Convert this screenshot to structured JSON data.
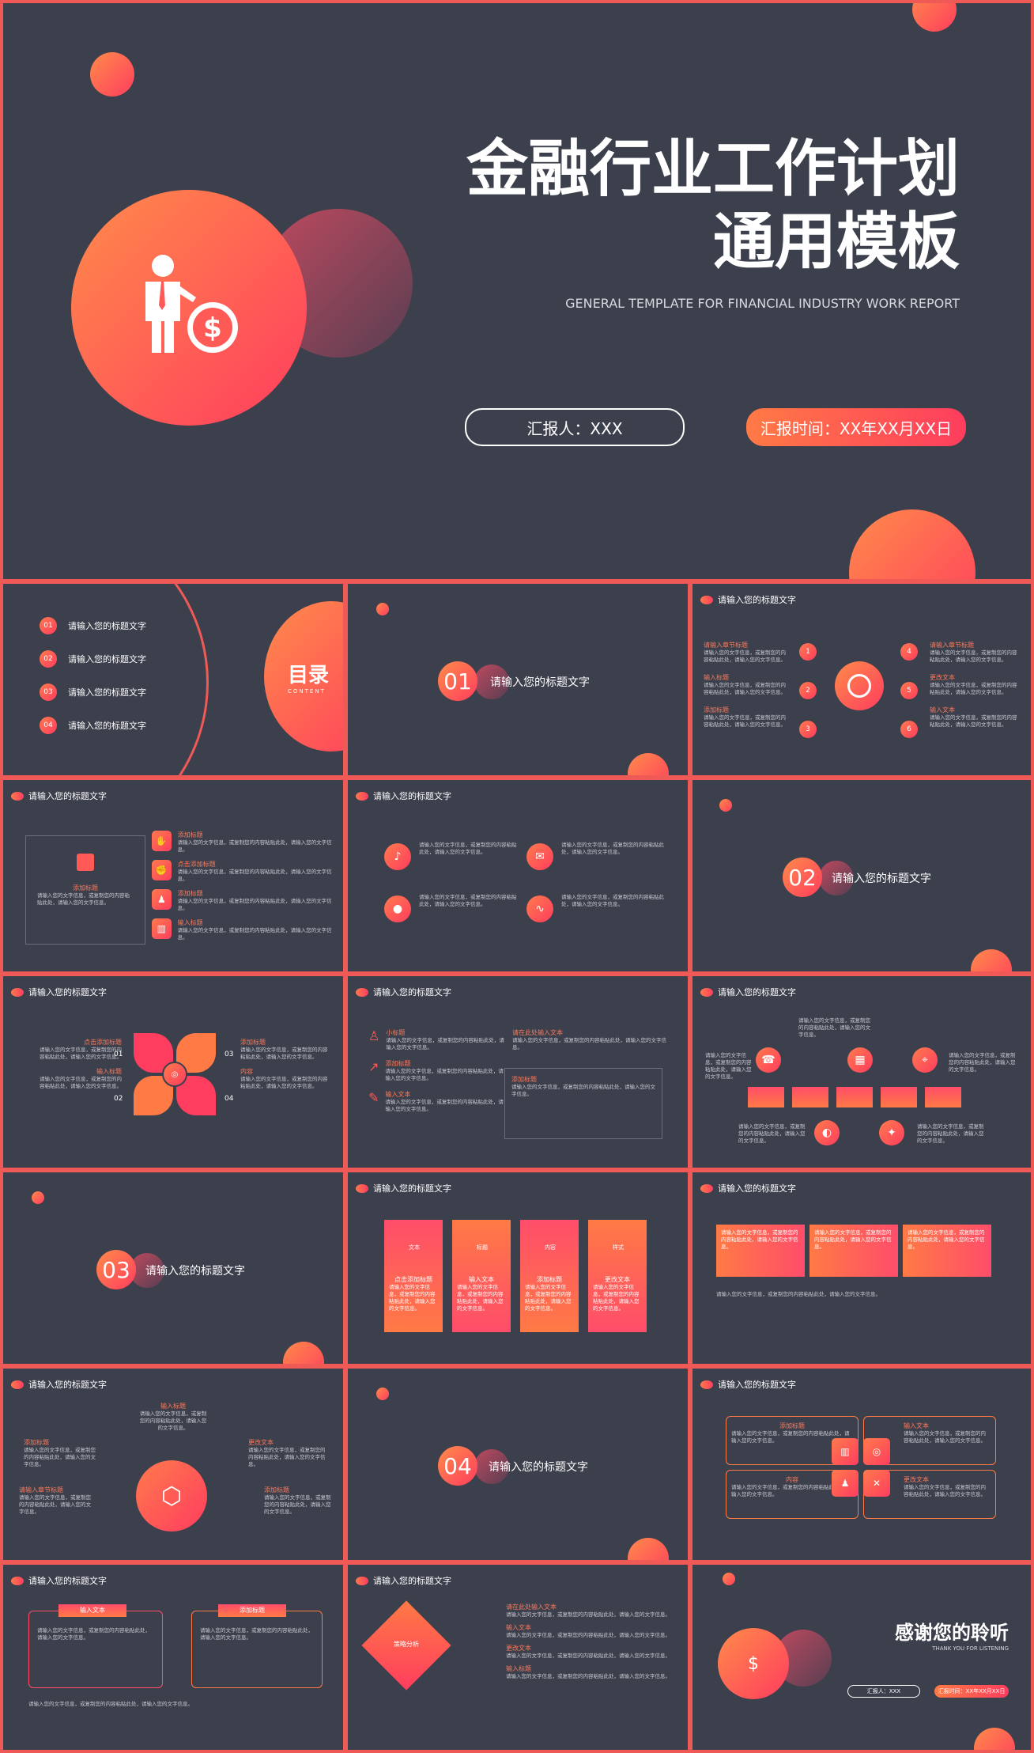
{
  "hero": {
    "title_line1": "金融行业工作计划",
    "title_line2": "通用模板",
    "subtitle": "GENERAL TEMPLATE FOR FINANCIAL INDUSTRY WORK REPORT",
    "reporter": "汇报人：XXX",
    "date": "汇报时间：XX年XX月XX日"
  },
  "toc": {
    "title": "目录",
    "subtitle": "CONTENT",
    "items": [
      {
        "num": "01",
        "label": "请输入您的标题文字"
      },
      {
        "num": "02",
        "label": "请输入您的标题文字"
      },
      {
        "num": "03",
        "label": "请输入您的标题文字"
      },
      {
        "num": "04",
        "label": "请输入您的标题文字"
      }
    ]
  },
  "section_title": "请输入您的标题文字",
  "sections": [
    "01",
    "02",
    "03",
    "04"
  ],
  "body_text": "请输入您的文字信息，或复制您的内容粘贴此处，请输入您的文字信息。",
  "labels": {
    "add_chapter": "请输入章节标题",
    "add_title": "添加标题",
    "input_text": "输入文本",
    "input_title": "输入标题",
    "click_title": "点击添加标题",
    "change_text": "更改文本",
    "title": "标题",
    "content": "内容",
    "style": "样式",
    "text": "文本",
    "strategy": "策略分析",
    "small_title": "小标题",
    "input_here": "请在此处输入文本"
  },
  "end": {
    "title": "感谢您的聆听",
    "subtitle": "THANK YOU FOR LISTENING",
    "reporter": "汇报人：XXX",
    "date": "汇报时间：XX年XX月XX日"
  }
}
